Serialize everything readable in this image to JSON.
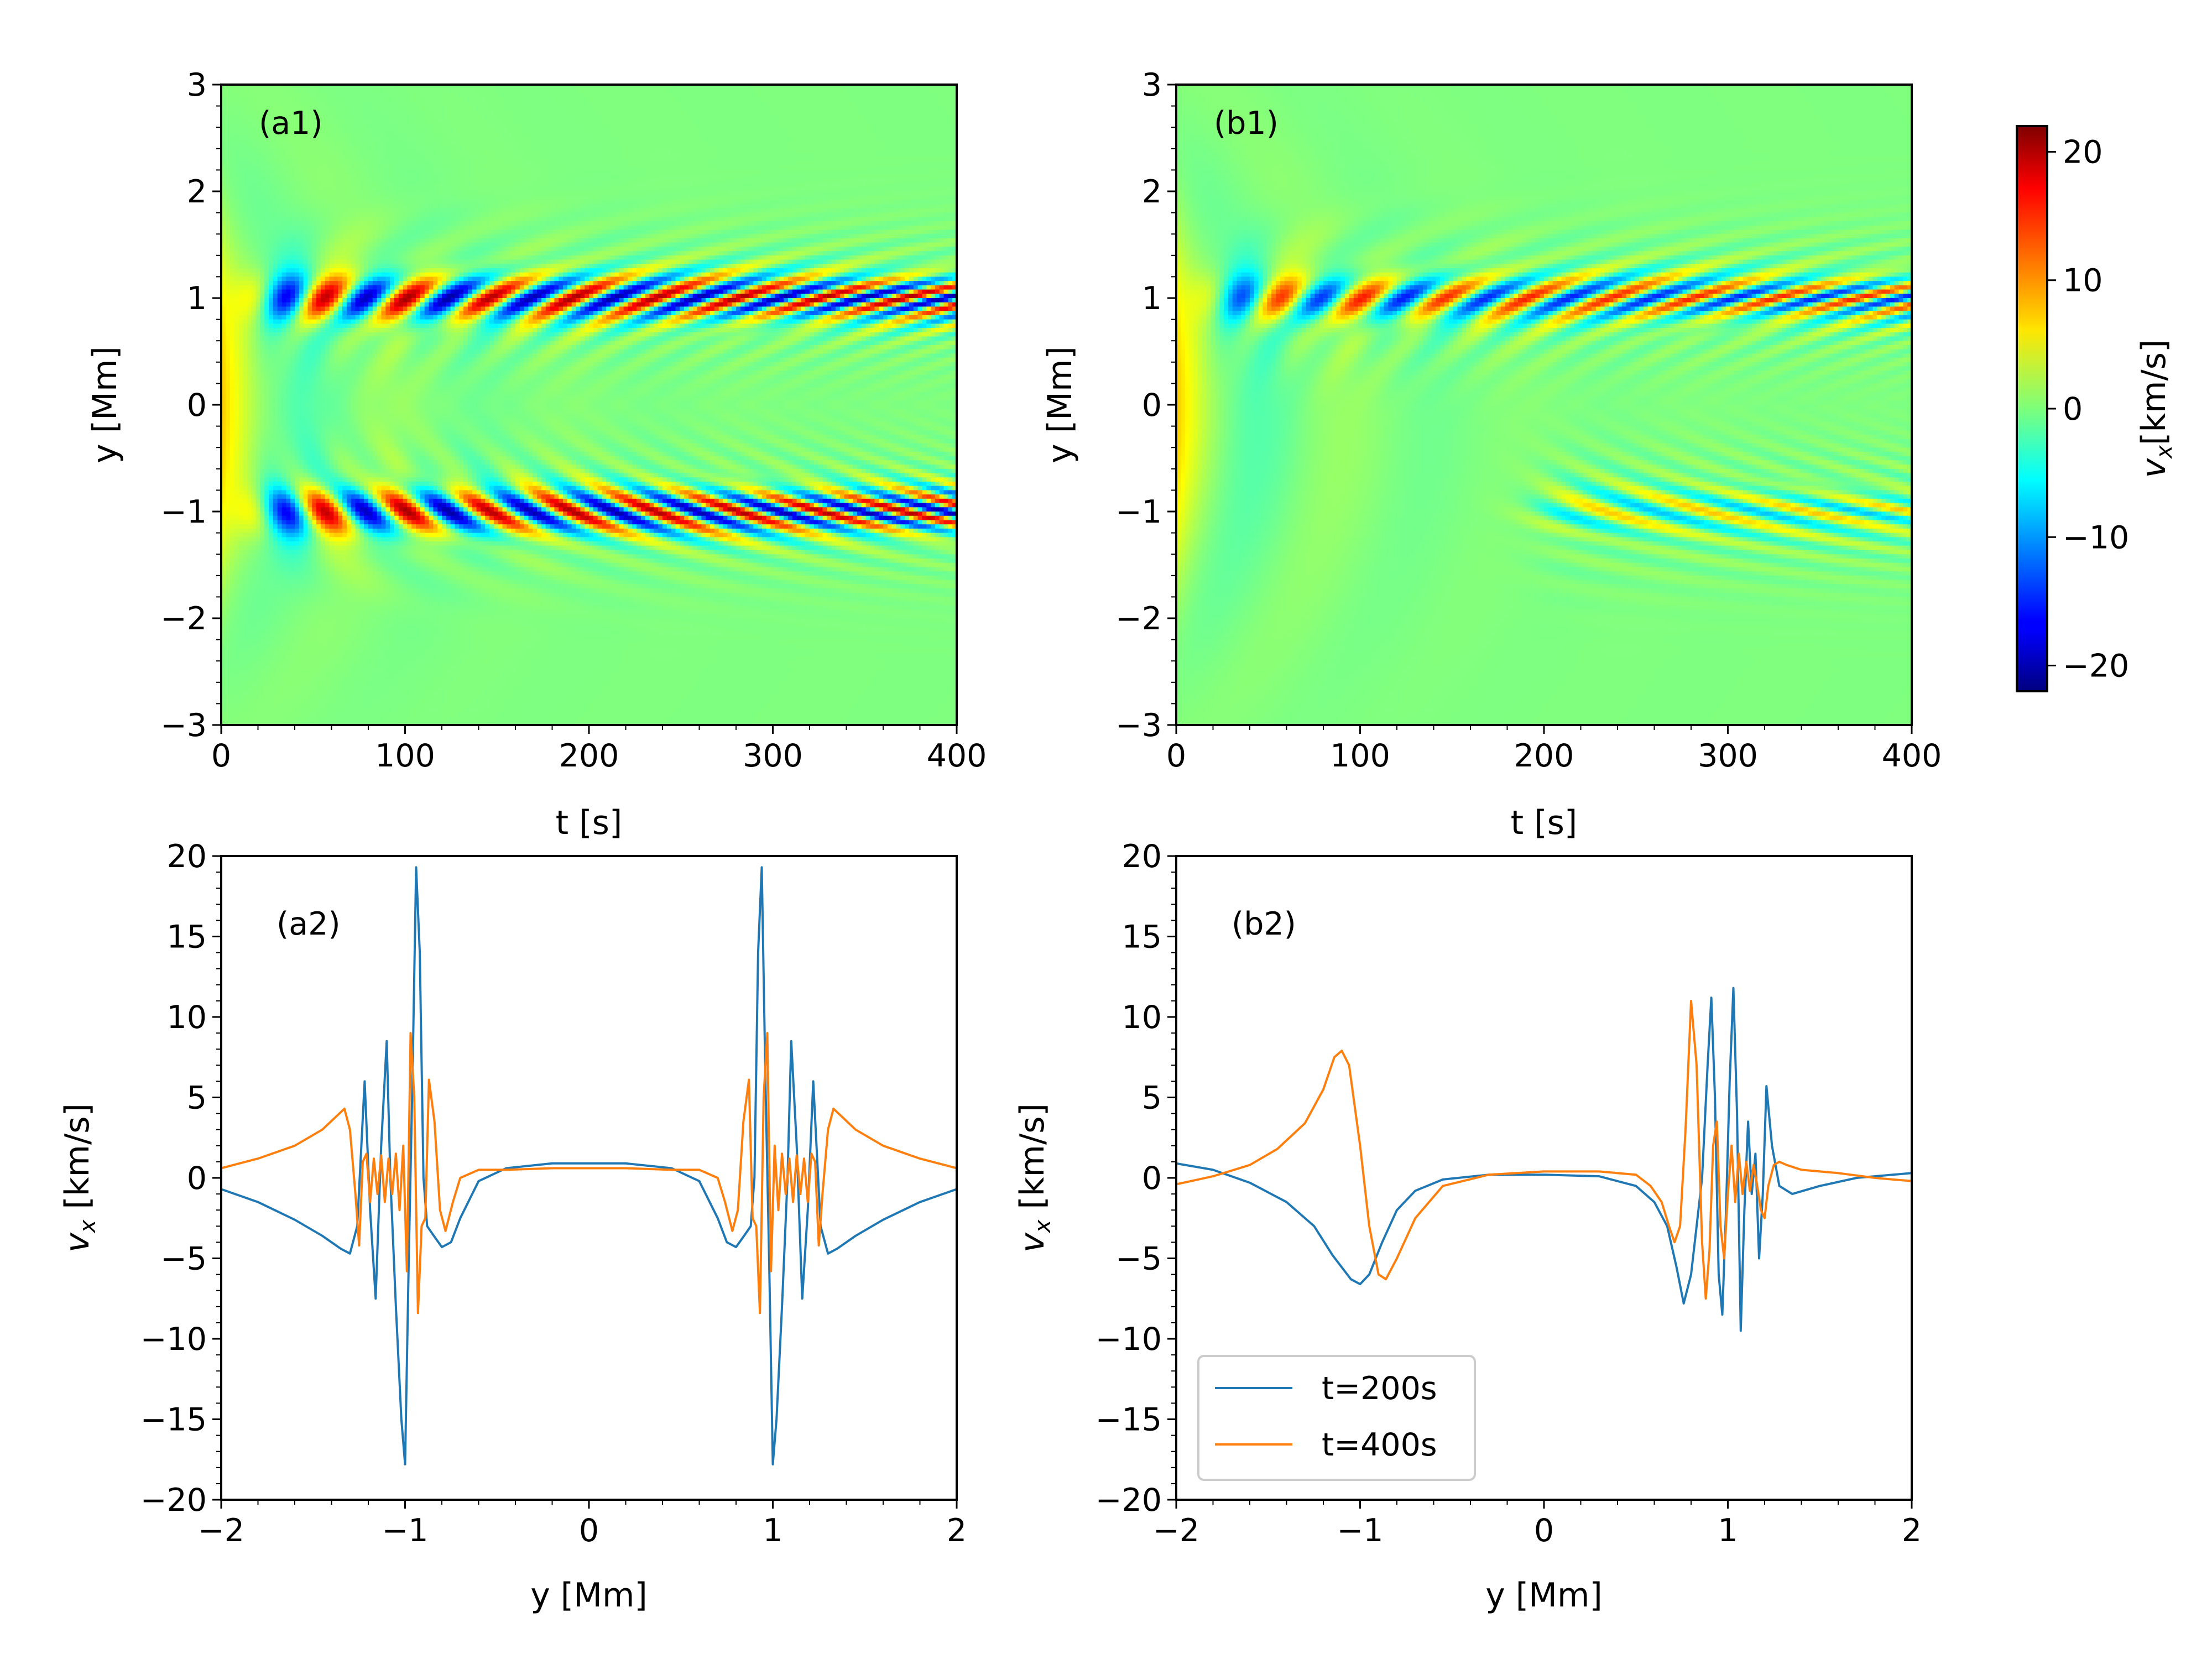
{
  "chart_data": [
    {
      "id": "a1",
      "type": "heatmap",
      "panel_label": "(a1)",
      "xlabel": "t [s]",
      "ylabel": "y [Mm]",
      "xlim": [
        0,
        400
      ],
      "ylim": [
        -3,
        3
      ],
      "xticks": [
        "0",
        "100",
        "200",
        "300",
        "400"
      ],
      "yticks": [
        "3",
        "2",
        "1",
        "0",
        "−1",
        "−2",
        "−3"
      ],
      "wave_bands": [
        {
          "y_center": 1.0,
          "start_t": 25,
          "period_s": 45,
          "amplitude_kms": 20,
          "sign": 1
        },
        {
          "y_center": -1.0,
          "start_t": 25,
          "period_s": 45,
          "amplitude_kms": 20,
          "sign": -1
        }
      ]
    },
    {
      "id": "b1",
      "type": "heatmap",
      "panel_label": "(b1)",
      "xlabel": "t [s]",
      "ylabel": "y [Mm]",
      "xlim": [
        0,
        400
      ],
      "ylim": [
        -3,
        3
      ],
      "xticks": [
        "0",
        "100",
        "200",
        "300",
        "400"
      ],
      "yticks": [
        "3",
        "2",
        "1",
        "0",
        "−1",
        "−2",
        "−3"
      ],
      "wave_bands": [
        {
          "y_center": 1.0,
          "start_t": 25,
          "period_s": 45,
          "amplitude_kms": 15,
          "sign": 1
        },
        {
          "y_center": -1.0,
          "start_t": 200,
          "period_s": 55,
          "amplitude_kms": 8,
          "sign": -1
        }
      ]
    },
    {
      "id": "a2",
      "type": "line",
      "panel_label": "(a2)",
      "xlabel": "y [Mm]",
      "ylabel_main": "v",
      "ylabel_sub": "x",
      "ylabel_rest": " [km/s]",
      "xlim": [
        -2,
        2
      ],
      "ylim": [
        -20,
        20
      ],
      "xticks": [
        "−2",
        "−1",
        "0",
        "1",
        "2"
      ],
      "yticks": [
        "20",
        "15",
        "10",
        "5",
        "0",
        "−5",
        "−10",
        "−15",
        "−20"
      ],
      "series": [
        {
          "name": "t=200s",
          "color": "#1f77b4",
          "x": [
            -2.0,
            -1.8,
            -1.6,
            -1.45,
            -1.35,
            -1.3,
            -1.26,
            -1.22,
            -1.19,
            -1.16,
            -1.13,
            -1.1,
            -1.08,
            -1.05,
            -1.02,
            -1.0,
            -0.98,
            -0.96,
            -0.94,
            -0.92,
            -0.9,
            -0.88,
            -0.85,
            -0.8,
            -0.75,
            -0.7,
            -0.6,
            -0.45,
            -0.2,
            0.0,
            0.2,
            0.45,
            0.6,
            0.7,
            0.75,
            0.8,
            0.85,
            0.88,
            0.9,
            0.92,
            0.94,
            0.96,
            0.98,
            1.0,
            1.02,
            1.05,
            1.08,
            1.1,
            1.13,
            1.16,
            1.19,
            1.22,
            1.26,
            1.3,
            1.35,
            1.45,
            1.6,
            1.8,
            2.0
          ],
          "y": [
            -0.7,
            -1.5,
            -2.6,
            -3.6,
            -4.4,
            -4.7,
            -3.0,
            6.0,
            -2.0,
            -7.5,
            2.0,
            8.5,
            0.0,
            -8.0,
            -15.0,
            -17.8,
            -5.0,
            6.0,
            19.3,
            14.0,
            0.0,
            -3.0,
            -3.5,
            -4.3,
            -4.0,
            -2.5,
            -0.2,
            0.6,
            0.9,
            0.9,
            0.9,
            0.6,
            -0.2,
            -2.5,
            -4.0,
            -4.3,
            -3.5,
            -3.0,
            0.0,
            14.0,
            19.3,
            6.0,
            -5.0,
            -17.8,
            -15.0,
            -8.0,
            0.0,
            8.5,
            2.0,
            -7.5,
            -2.0,
            6.0,
            -3.0,
            -4.7,
            -4.4,
            -3.6,
            -2.6,
            -1.5,
            -0.7
          ]
        },
        {
          "name": "t=400s",
          "color": "#ff7f0e",
          "x": [
            -2.0,
            -1.8,
            -1.6,
            -1.45,
            -1.33,
            -1.3,
            -1.27,
            -1.25,
            -1.23,
            -1.21,
            -1.19,
            -1.17,
            -1.15,
            -1.13,
            -1.11,
            -1.09,
            -1.07,
            -1.05,
            -1.03,
            -1.01,
            -0.99,
            -0.97,
            -0.95,
            -0.93,
            -0.91,
            -0.89,
            -0.87,
            -0.84,
            -0.81,
            -0.78,
            -0.74,
            -0.7,
            -0.6,
            -0.45,
            -0.2,
            0.0,
            0.2,
            0.45,
            0.6,
            0.7,
            0.74,
            0.78,
            0.81,
            0.84,
            0.87,
            0.89,
            0.91,
            0.93,
            0.95,
            0.97,
            0.99,
            1.01,
            1.03,
            1.05,
            1.07,
            1.09,
            1.11,
            1.13,
            1.15,
            1.17,
            1.19,
            1.21,
            1.23,
            1.25,
            1.27,
            1.3,
            1.33,
            1.45,
            1.6,
            1.8,
            2.0
          ],
          "y": [
            0.6,
            1.2,
            2.0,
            3.0,
            4.3,
            3.0,
            -1.0,
            -4.2,
            1.0,
            1.5,
            -1.5,
            1.2,
            -1.0,
            1.4,
            -1.5,
            1.2,
            -1.0,
            1.5,
            -2.0,
            2.0,
            -5.8,
            9.0,
            5.0,
            -8.4,
            -3.0,
            -2.5,
            6.1,
            3.5,
            -2.0,
            -3.3,
            -1.5,
            0.0,
            0.5,
            0.5,
            0.6,
            0.6,
            0.6,
            0.5,
            0.5,
            0.0,
            -1.5,
            -3.3,
            -2.0,
            3.5,
            6.1,
            -2.5,
            -3.0,
            -8.4,
            5.0,
            9.0,
            -5.8,
            2.0,
            -2.0,
            1.5,
            -1.0,
            1.2,
            -1.5,
            1.4,
            -1.0,
            1.2,
            -1.5,
            1.5,
            1.0,
            -4.2,
            -1.0,
            3.0,
            4.3,
            3.0,
            2.0,
            1.2,
            0.6
          ]
        }
      ]
    },
    {
      "id": "b2",
      "type": "line",
      "panel_label": "(b2)",
      "xlabel": "y [Mm]",
      "ylabel_main": "v",
      "ylabel_sub": "x",
      "ylabel_rest": " [km/s]",
      "xlim": [
        -2,
        2
      ],
      "ylim": [
        -20,
        20
      ],
      "xticks": [
        "−2",
        "−1",
        "0",
        "1",
        "2"
      ],
      "yticks": [
        "20",
        "15",
        "10",
        "5",
        "0",
        "−5",
        "−10",
        "−15",
        "−20"
      ],
      "legend": {
        "location": "lower-left",
        "entries": [
          "t=200s",
          "t=400s"
        ]
      },
      "series": [
        {
          "name": "t=200s",
          "color": "#1f77b4",
          "x": [
            -2.0,
            -1.8,
            -1.6,
            -1.4,
            -1.25,
            -1.15,
            -1.05,
            -1.0,
            -0.95,
            -0.88,
            -0.8,
            -0.7,
            -0.55,
            -0.3,
            0.0,
            0.3,
            0.5,
            0.6,
            0.67,
            0.72,
            0.76,
            0.8,
            0.83,
            0.86,
            0.89,
            0.91,
            0.93,
            0.95,
            0.97,
            0.99,
            1.01,
            1.03,
            1.05,
            1.07,
            1.09,
            1.11,
            1.13,
            1.15,
            1.17,
            1.19,
            1.21,
            1.24,
            1.28,
            1.35,
            1.5,
            1.7,
            2.0
          ],
          "y": [
            0.9,
            0.5,
            -0.3,
            -1.5,
            -3.0,
            -4.8,
            -6.3,
            -6.6,
            -6.0,
            -4.0,
            -2.0,
            -0.8,
            -0.1,
            0.2,
            0.2,
            0.1,
            -0.5,
            -1.5,
            -3.0,
            -5.5,
            -7.8,
            -6.0,
            -3.0,
            0.0,
            7.0,
            11.2,
            5.0,
            -6.0,
            -8.5,
            -2.0,
            6.0,
            11.8,
            4.0,
            -9.5,
            -2.0,
            3.5,
            -1.0,
            1.5,
            -5.0,
            -1.0,
            5.7,
            2.0,
            -0.5,
            -1.0,
            -0.5,
            0.0,
            0.3
          ]
        },
        {
          "name": "t=400s",
          "color": "#ff7f0e",
          "x": [
            -2.0,
            -1.8,
            -1.6,
            -1.45,
            -1.3,
            -1.2,
            -1.14,
            -1.1,
            -1.06,
            -1.0,
            -0.95,
            -0.9,
            -0.86,
            -0.8,
            -0.7,
            -0.55,
            -0.3,
            0.0,
            0.3,
            0.5,
            0.58,
            0.64,
            0.68,
            0.71,
            0.74,
            0.77,
            0.8,
            0.83,
            0.86,
            0.88,
            0.9,
            0.92,
            0.94,
            0.96,
            0.98,
            1.0,
            1.02,
            1.04,
            1.06,
            1.08,
            1.1,
            1.12,
            1.14,
            1.16,
            1.18,
            1.2,
            1.22,
            1.25,
            1.28,
            1.32,
            1.4,
            1.6,
            1.8,
            2.0
          ],
          "y": [
            -0.4,
            0.1,
            0.8,
            1.8,
            3.4,
            5.5,
            7.5,
            7.9,
            7.0,
            2.0,
            -3.0,
            -6.0,
            -6.3,
            -5.0,
            -2.5,
            -0.5,
            0.2,
            0.4,
            0.4,
            0.2,
            -0.5,
            -1.5,
            -3.0,
            -4.0,
            -3.0,
            3.0,
            11.0,
            7.0,
            -4.0,
            -7.5,
            -4.5,
            2.0,
            3.5,
            -3.0,
            -5.0,
            -1.0,
            2.0,
            -1.5,
            1.5,
            -1.0,
            1.0,
            -0.8,
            0.8,
            -0.5,
            -2.0,
            -2.5,
            -0.5,
            0.8,
            1.0,
            0.8,
            0.5,
            0.3,
            0.0,
            -0.2
          ]
        }
      ]
    }
  ],
  "colorbar": {
    "label_main": "v",
    "label_sub": "x",
    "label_rest": "[km/s]",
    "range": [
      -22,
      22
    ],
    "ticks": [
      "20",
      "10",
      "0",
      "−10",
      "−20"
    ],
    "tick_values": [
      20,
      10,
      0,
      -10,
      -20
    ],
    "colormap": "jet"
  }
}
